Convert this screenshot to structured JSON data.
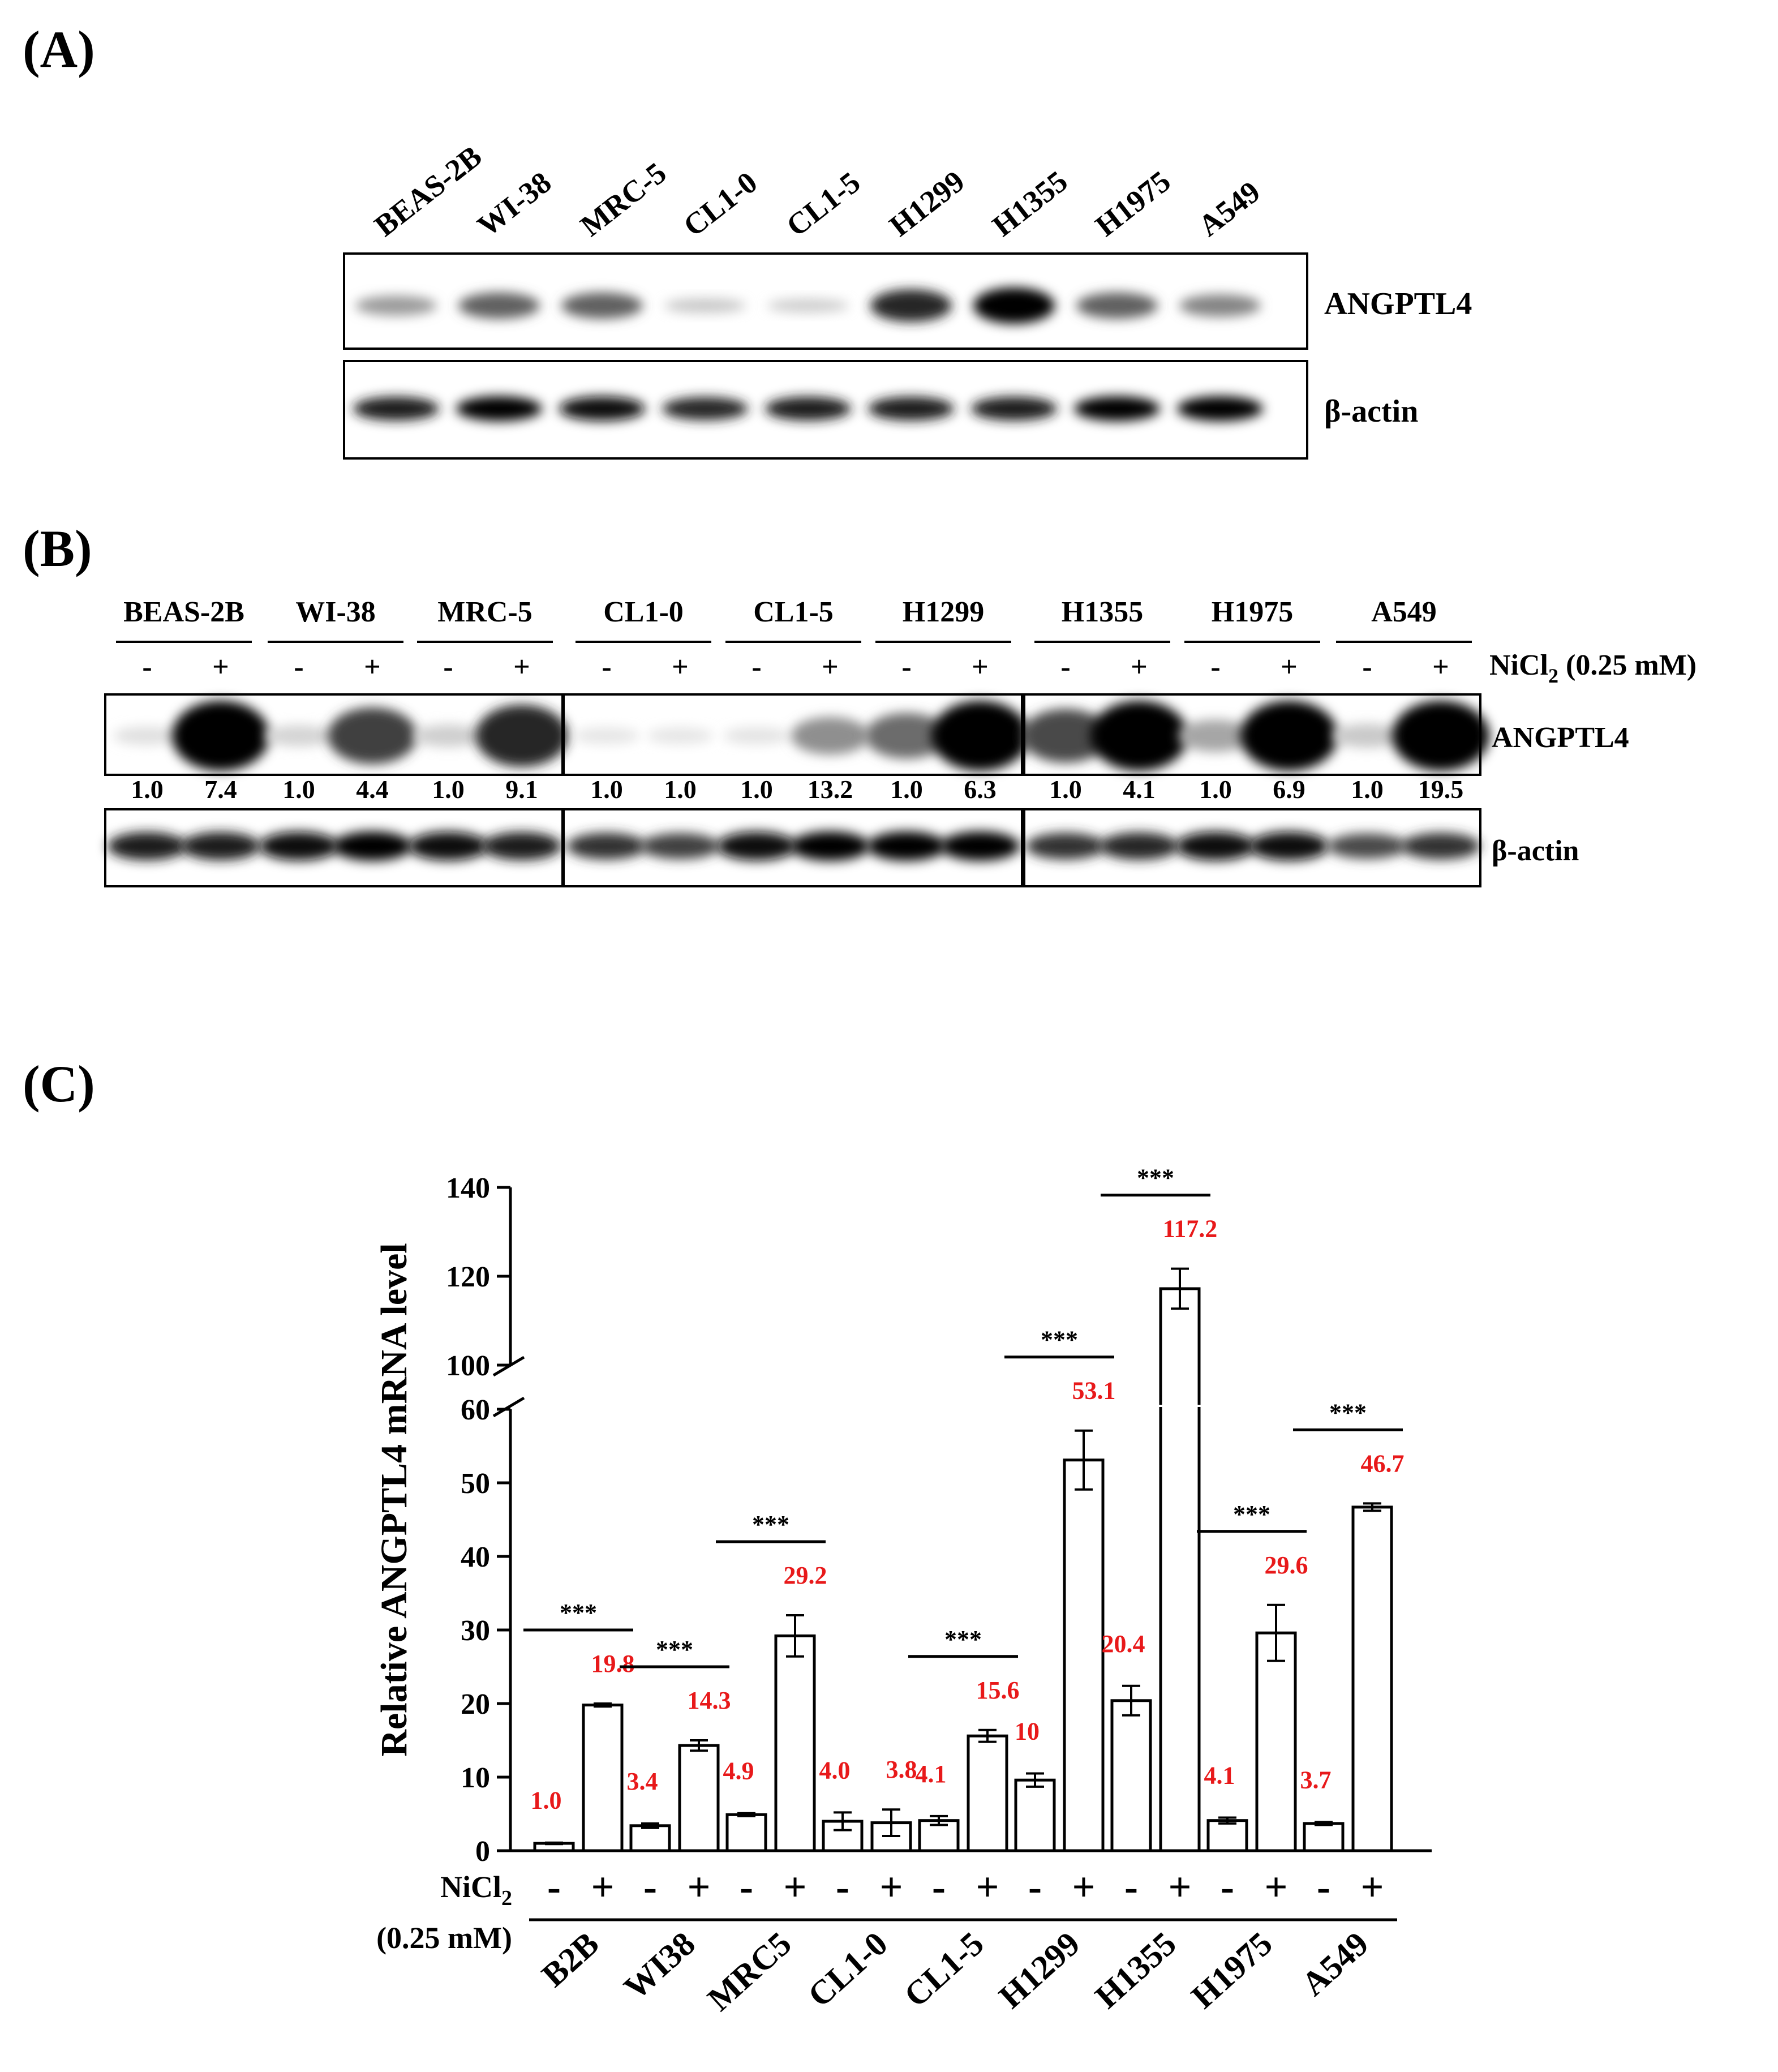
{
  "panel_a": {
    "label": "(A)",
    "cell_lines": [
      "BEAS-2B",
      "WI-38",
      "MRC-5",
      "CL1-0",
      "CL1-5",
      "H1299",
      "H1355",
      "H1975",
      "A549"
    ],
    "blots": [
      "ANGPTL4",
      "β-actin"
    ],
    "angptl4_band_intensity": [
      0.35,
      0.6,
      0.6,
      0.15,
      0.12,
      0.85,
      1.0,
      0.6,
      0.45
    ],
    "actin_band_intensity": [
      0.9,
      1.0,
      0.95,
      0.85,
      0.9,
      0.9,
      0.9,
      1.0,
      1.0
    ]
  },
  "panel_b": {
    "label": "(B)",
    "cell_lines": [
      "BEAS-2B",
      "WI-38",
      "MRC-5",
      "CL1-0",
      "CL1-5",
      "H1299",
      "H1355",
      "H1975",
      "A549"
    ],
    "signs": [
      "-",
      "+"
    ],
    "treatment_label": "NiCl",
    "treatment_subscript": "2",
    "treatment_conc": " (0.25 mM)",
    "blots": [
      "ANGPTL4",
      "β-actin"
    ],
    "ratios": [
      "1.0",
      "7.4",
      "1.0",
      "4.4",
      "1.0",
      "9.1",
      "1.0",
      "1.0",
      "1.0",
      "13.2",
      "1.0",
      "6.3",
      "1.0",
      "4.1",
      "1.0",
      "6.9",
      "1.0",
      "19.5"
    ],
    "angptl4_band_intensity": [
      0.05,
      1.0,
      0.1,
      0.75,
      0.12,
      0.85,
      0.02,
      0.02,
      0.03,
      0.4,
      0.55,
      1.0,
      0.7,
      1.0,
      0.3,
      1.0,
      0.15,
      1.0
    ],
    "actin_band_intensity": [
      0.9,
      0.9,
      0.95,
      1.0,
      0.95,
      0.9,
      0.8,
      0.75,
      0.95,
      1.0,
      1.0,
      1.0,
      0.8,
      0.85,
      0.95,
      0.95,
      0.7,
      0.8
    ]
  },
  "panel_c": {
    "label": "(C)",
    "treatment_label": "NiCl",
    "treatment_subscript": "2",
    "treatment_conc": "(0.25 mM)",
    "significance": "***"
  },
  "chart_data": {
    "type": "bar",
    "ylabel": "Relative ANGPTL4 mRNA level",
    "y_ticks_lower": [
      0,
      10,
      20,
      30,
      40,
      50,
      60
    ],
    "y_ticks_upper": [
      100,
      120,
      140
    ],
    "axis_break": [
      60,
      100
    ],
    "categories": [
      "B2B",
      "WI38",
      "MRC5",
      "CL1-0",
      "CL1-5",
      "H1299",
      "H1355",
      "H1975",
      "A549"
    ],
    "series": [
      {
        "name": "-",
        "values": [
          1.0,
          3.4,
          4.9,
          4.0,
          4.1,
          9.6,
          20.4,
          4.1,
          3.7
        ],
        "errors": [
          0.1,
          0.3,
          0.2,
          1.2,
          0.6,
          0.9,
          2.0,
          0.4,
          0.2
        ],
        "labels": [
          "1.0",
          "3.4",
          "4.9",
          "4.0",
          "4.1",
          "10",
          "20.4",
          "4.1",
          "3.7"
        ]
      },
      {
        "name": "+",
        "values": [
          19.8,
          14.3,
          29.2,
          3.8,
          15.6,
          53.1,
          117.2,
          29.6,
          46.7
        ],
        "errors": [
          0.2,
          0.7,
          2.8,
          1.8,
          0.8,
          4.0,
          4.5,
          3.8,
          0.5
        ],
        "labels": [
          "19.8",
          "14.3",
          "29.2",
          "3.8",
          "15.6",
          "53.1",
          "117.2",
          "29.6",
          "46.7"
        ]
      }
    ],
    "significant": [
      true,
      true,
      true,
      false,
      true,
      true,
      true,
      true,
      true
    ],
    "label_color": "#e8191a"
  }
}
